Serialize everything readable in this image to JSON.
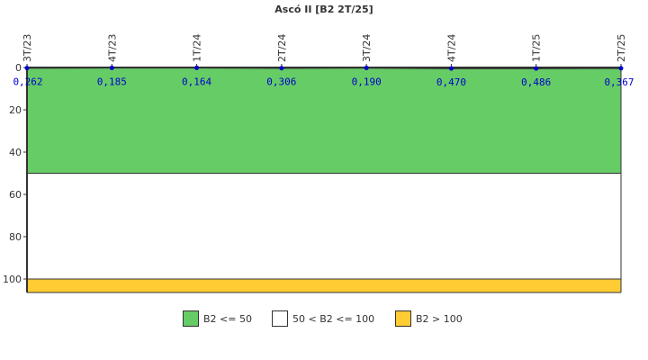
{
  "chart_data": {
    "type": "line",
    "title": "Ascó II [B2 2T/25]",
    "xlabel": "",
    "ylabel": "",
    "categories": [
      "3T/23",
      "4T/23",
      "1T/24",
      "2T/24",
      "3T/24",
      "4T/24",
      "1T/25",
      "2T/25"
    ],
    "series": [
      {
        "name": "B2",
        "values": [
          0.262,
          0.185,
          0.164,
          0.306,
          0.19,
          0.47,
          0.486,
          0.367
        ],
        "labels": [
          "0,262",
          "0,185",
          "0,164",
          "0,306",
          "0,190",
          "0,470",
          "0,486",
          "0,367"
        ],
        "color": "#0000cc"
      }
    ],
    "y_axis": {
      "inverted": true,
      "ticks": [
        0,
        20,
        40,
        60,
        80,
        100
      ],
      "ylim": [
        0,
        106.4
      ]
    },
    "bands": [
      {
        "label": "B2 <= 50",
        "from": 0,
        "to": 50,
        "color": "#66cc66"
      },
      {
        "label": "50 < B2 <= 100",
        "from": 50,
        "to": 100,
        "color": "#ffffff"
      },
      {
        "label": "B2 > 100",
        "from": 100,
        "to": 106.4,
        "color": "#ffcc33"
      }
    ],
    "x_tick_position": "top",
    "grid": false,
    "legend_position": "bottom"
  },
  "legend": [
    {
      "label": "B2 <= 50",
      "color": "#66cc66"
    },
    {
      "label": "50 < B2 <= 100",
      "color": "#ffffff"
    },
    {
      "label": "B2 > 100",
      "color": "#ffcc33"
    }
  ]
}
